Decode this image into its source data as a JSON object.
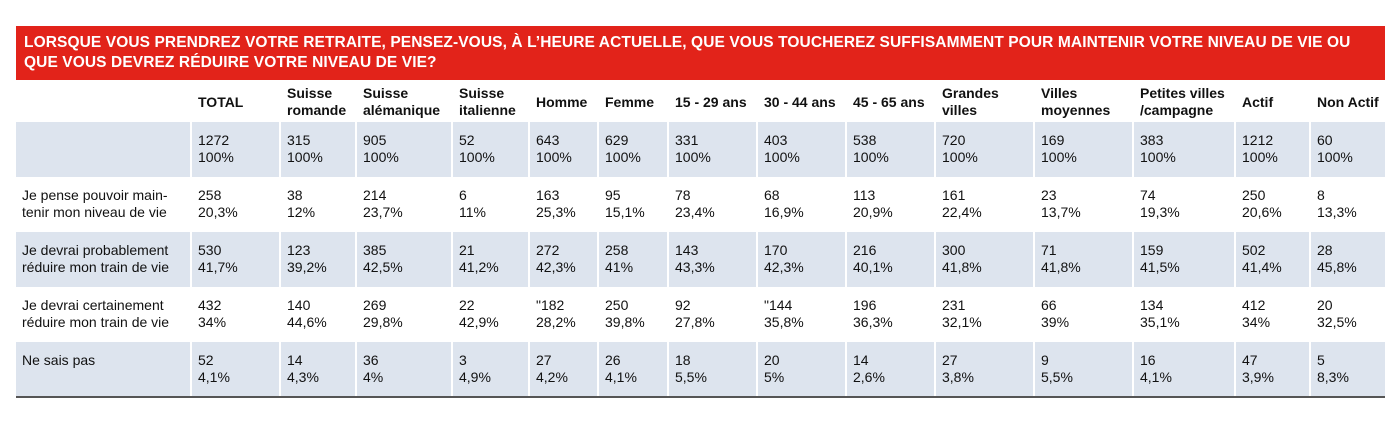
{
  "title": "LORSQUE VOUS PRENDREZ VOTRE RETRAITE, PENSEZ-VOUS, À L’HEURE ACTUELLE, QUE VOUS TOUCHEREZ SUFFISAMMENT POUR MAINTENIR VOTRE NIVEAU DE VIE OU QUE VOUS DEVREZ RÉDUIRE VOTRE NIVEAU DE VIE?",
  "columns": [
    {
      "line1": "TOTAL",
      "line2": ""
    },
    {
      "line1": "Suisse",
      "line2": "romande"
    },
    {
      "line1": "Suisse",
      "line2": "alémanique"
    },
    {
      "line1": "Suisse",
      "line2": "italienne"
    },
    {
      "line1": "Homme",
      "line2": ""
    },
    {
      "line1": "Femme",
      "line2": ""
    },
    {
      "line1": "15 - 29 ans",
      "line2": ""
    },
    {
      "line1": "30 - 44 ans",
      "line2": ""
    },
    {
      "line1": "45 - 65 ans",
      "line2": ""
    },
    {
      "line1": "Grandes",
      "line2": "villes"
    },
    {
      "line1": "Villes",
      "line2": "moyennes"
    },
    {
      "line1": "Petites villes",
      "line2": "/campagne"
    },
    {
      "line1": "Actif",
      "line2": ""
    },
    {
      "line1": "Non Actif",
      "line2": ""
    }
  ],
  "rows": [
    {
      "label1": "",
      "label2": "",
      "cells": [
        {
          "n": "1272",
          "p": "100%"
        },
        {
          "n": "315",
          "p": "100%"
        },
        {
          "n": "905",
          "p": "100%"
        },
        {
          "n": "52",
          "p": "100%"
        },
        {
          "n": "643",
          "p": "100%"
        },
        {
          "n": "629",
          "p": "100%"
        },
        {
          "n": "331",
          "p": "100%"
        },
        {
          "n": "403",
          "p": "100%"
        },
        {
          "n": "538",
          "p": "100%"
        },
        {
          "n": "720",
          "p": "100%"
        },
        {
          "n": "169",
          "p": "100%"
        },
        {
          "n": "383",
          "p": "100%"
        },
        {
          "n": "1212",
          "p": "100%"
        },
        {
          "n": "60",
          "p": "100%"
        }
      ]
    },
    {
      "label1": "Je pense pouvoir main-",
      "label2": "tenir mon niveau de vie",
      "cells": [
        {
          "n": "258",
          "p": "20,3%"
        },
        {
          "n": "38",
          "p": "12%"
        },
        {
          "n": "214",
          "p": "23,7%"
        },
        {
          "n": "6",
          "p": "11%"
        },
        {
          "n": "163",
          "p": "25,3%"
        },
        {
          "n": "95",
          "p": "15,1%"
        },
        {
          "n": "78",
          "p": "23,4%"
        },
        {
          "n": "68",
          "p": "16,9%"
        },
        {
          "n": "113",
          "p": "20,9%"
        },
        {
          "n": "161",
          "p": "22,4%"
        },
        {
          "n": "23",
          "p": "13,7%"
        },
        {
          "n": "74",
          "p": "19,3%"
        },
        {
          "n": "250",
          "p": "20,6%"
        },
        {
          "n": "8",
          "p": "13,3%"
        }
      ]
    },
    {
      "label1": "Je devrai probablement",
      "label2": "réduire mon train de vie",
      "cells": [
        {
          "n": "530",
          "p": "41,7%"
        },
        {
          "n": "123",
          "p": "39,2%"
        },
        {
          "n": "385",
          "p": "42,5%"
        },
        {
          "n": "21",
          "p": "41,2%"
        },
        {
          "n": "272",
          "p": "42,3%"
        },
        {
          "n": "258",
          "p": "41%"
        },
        {
          "n": "143",
          "p": "43,3%"
        },
        {
          "n": "170",
          "p": "42,3%"
        },
        {
          "n": "216",
          "p": "40,1%"
        },
        {
          "n": "300",
          "p": "41,8%"
        },
        {
          "n": "71",
          "p": "41,8%"
        },
        {
          "n": "159",
          "p": "41,5%"
        },
        {
          "n": "502",
          "p": "41,4%"
        },
        {
          "n": "28",
          "p": "45,8%"
        }
      ]
    },
    {
      "label1": "Je devrai certainement",
      "label2": "réduire mon train de vie",
      "cells": [
        {
          "n": "432",
          "p": "34%"
        },
        {
          "n": "140",
          "p": "44,6%"
        },
        {
          "n": "269",
          "p": "29,8%"
        },
        {
          "n": "22",
          "p": "42,9%"
        },
        {
          "n": "\"182",
          "p": "28,2%"
        },
        {
          "n": "250",
          "p": "39,8%"
        },
        {
          "n": "92",
          "p": "27,8%"
        },
        {
          "n": "\"144",
          "p": "35,8%"
        },
        {
          "n": "196",
          "p": "36,3%"
        },
        {
          "n": "231",
          "p": "32,1%"
        },
        {
          "n": "66",
          "p": "39%"
        },
        {
          "n": "134",
          "p": "35,1%"
        },
        {
          "n": "412",
          "p": "34%"
        },
        {
          "n": "20",
          "p": "32,5%"
        }
      ]
    },
    {
      "label1": "Ne sais pas",
      "label2": "",
      "cells": [
        {
          "n": "52",
          "p": "4,1%"
        },
        {
          "n": "14",
          "p": "4,3%"
        },
        {
          "n": "36",
          "p": "4%"
        },
        {
          "n": "3",
          "p": "4,9%"
        },
        {
          "n": "27",
          "p": "4,2%"
        },
        {
          "n": "26",
          "p": "4,1%"
        },
        {
          "n": "18",
          "p": "5,5%"
        },
        {
          "n": "20",
          "p": "5%"
        },
        {
          "n": "14",
          "p": "2,6%"
        },
        {
          "n": "27",
          "p": "3,8%"
        },
        {
          "n": "9",
          "p": "5,5%"
        },
        {
          "n": "16",
          "p": "4,1%"
        },
        {
          "n": "47",
          "p": "3,9%"
        },
        {
          "n": "5",
          "p": "8,3%"
        }
      ]
    }
  ]
}
